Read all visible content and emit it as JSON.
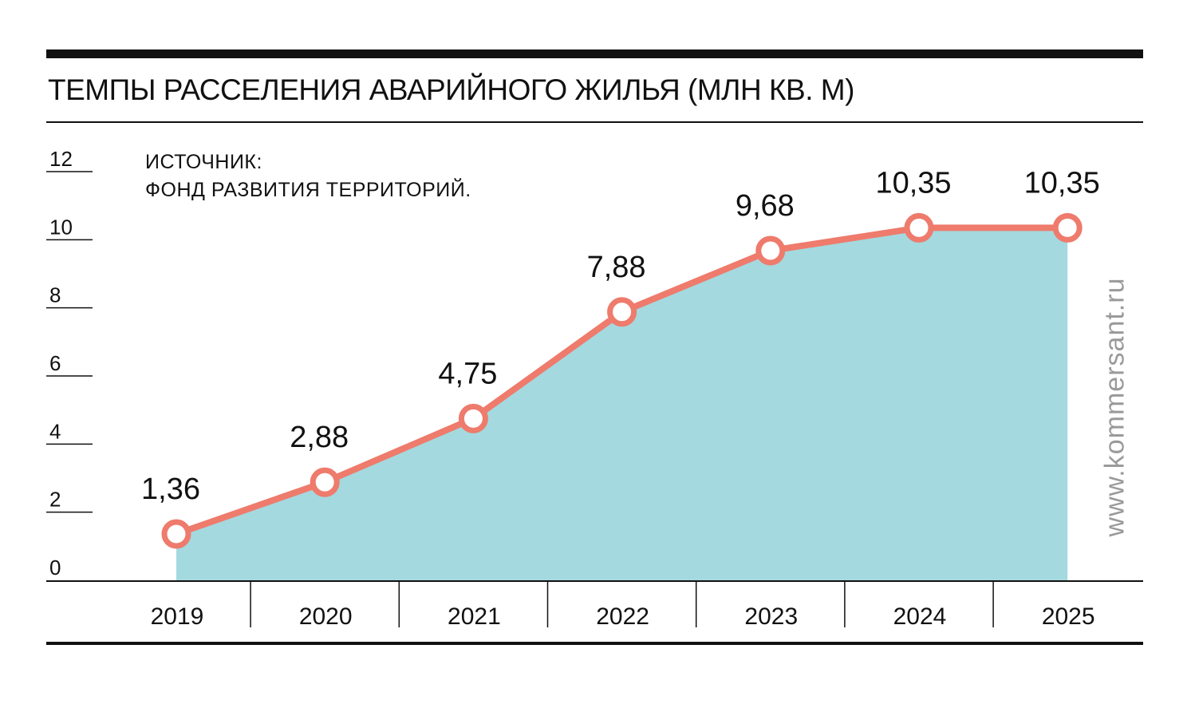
{
  "chart_data": {
    "type": "area",
    "title": "ТЕМПЫ РАССЕЛЕНИЯ АВАРИЙНОГО ЖИЛЬЯ (МЛН КВ. М)",
    "source_line1": "ИСТОЧНИК:",
    "source_line2": "ФОНД РАЗВИТИЯ ТЕРРИТОРИЙ.",
    "categories": [
      "2019",
      "2020",
      "2021",
      "2022",
      "2023",
      "2024",
      "2025"
    ],
    "values": [
      1.36,
      2.88,
      4.75,
      7.88,
      9.68,
      10.35,
      10.35
    ],
    "value_labels": [
      "1,36",
      "2,88",
      "4,75",
      "7,88",
      "9,68",
      "10,35",
      "10,35"
    ],
    "y_ticks": [
      "0",
      "2",
      "4",
      "6",
      "8",
      "10",
      "12"
    ],
    "ylim": [
      0,
      12
    ],
    "xlabel": "",
    "ylabel": "",
    "grid": false,
    "colors": {
      "area": "#a4d9df",
      "line": "#ee7b6c",
      "marker_fill": "#ffffff"
    }
  },
  "watermark": "www.kommersant.ru"
}
